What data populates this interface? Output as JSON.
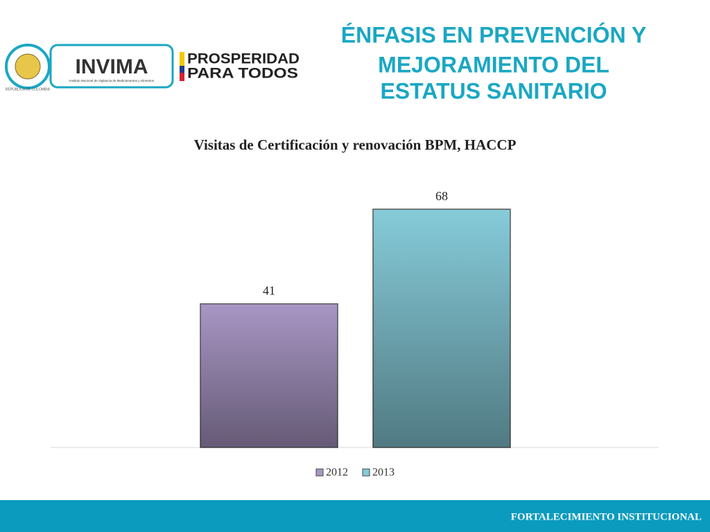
{
  "header": {
    "title": [
      "ÉNFASIS EN PREVENCIÓN Y",
      "MEJORAMIENTO DEL",
      "ESTATUS SANITARIO"
    ]
  },
  "logos": {
    "seal": "REPÚBLICA DE COLOMBIA",
    "invima": "INVIMA",
    "invima_subtitle": "Instituto Nacional de Vigilancia de Medicamentos y Alimentos",
    "prosperidad": [
      "PROSPERIDAD",
      "PARA TODOS"
    ]
  },
  "chart_data": {
    "type": "bar",
    "title": "Visitas de Certificación y renovación BPM, HACCP",
    "categories": [
      null
    ],
    "series": [
      {
        "name": "2012",
        "color": "#a896c4",
        "values": [
          41
        ]
      },
      {
        "name": "2013",
        "color": "#86cbd9",
        "values": [
          68
        ]
      }
    ]
  },
  "footer": "FORTALECIMIENTO INSTITUCIONAL"
}
